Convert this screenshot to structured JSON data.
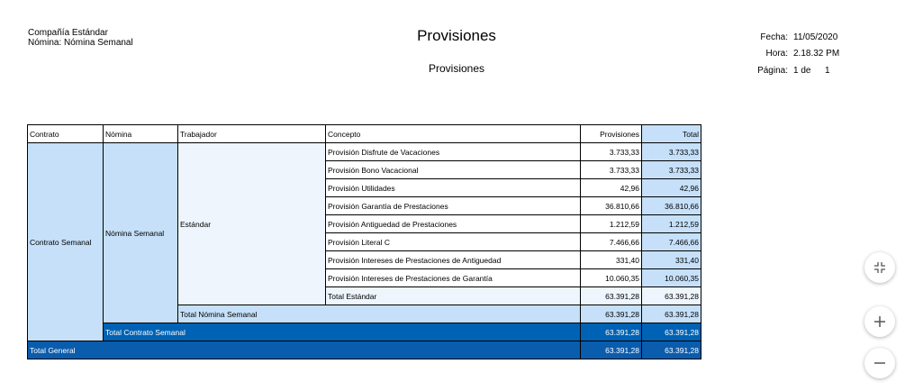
{
  "header": {
    "company": "Compañía Estándar",
    "payroll": "Nómina: Nómina Semanal",
    "title": "Provisiones",
    "subtitle": "Provisiones",
    "date_label": "Fecha:",
    "date": "11/05/2020",
    "time_label": "Hora:",
    "time": "2.18.32 PM",
    "page_label": "Página:",
    "page": "1 de",
    "page_total": "1"
  },
  "table": {
    "columns": [
      "Contrato",
      "Nómina",
      "Trabajador",
      "Concepto",
      "Provisiones",
      "Total"
    ],
    "contract": "Contrato Semanal",
    "payroll": "Nómina Semanal",
    "worker": "Estándar",
    "rows": [
      [
        "Provisión Disfrute de Vacaciones",
        "3.733,33",
        "3.733,33"
      ],
      [
        "Provisión Bono Vacacional",
        "3.733,33",
        "3.733,33"
      ],
      [
        "Provisión Utilidades",
        "42,96",
        "42,96"
      ],
      [
        "Provisión Garantía de Prestaciones",
        "36.810,66",
        "36.810,66"
      ],
      [
        "Provisión Antiguedad de Prestaciones",
        "1.212,59",
        "1.212,59"
      ],
      [
        "Provisión Literal C",
        "7.466,66",
        "7.466,66"
      ],
      [
        "Provisión Intereses de Prestaciones de Antiguedad",
        "331,40",
        "331,40"
      ],
      [
        "Provisión Intereses de Prestaciones de Garantía",
        "10.060,35",
        "10.060,35"
      ]
    ],
    "total_worker": [
      "Total Estándar",
      "63.391,28",
      "63.391,28"
    ],
    "total_payroll": [
      "Total Nómina Semanal",
      "63.391,28",
      "63.391,28"
    ],
    "total_contract": [
      "Total Contrato Semanal",
      "63.391,28",
      "63.391,28"
    ],
    "total_general": [
      "Total General",
      "63.391,28",
      "63.391,28"
    ]
  }
}
